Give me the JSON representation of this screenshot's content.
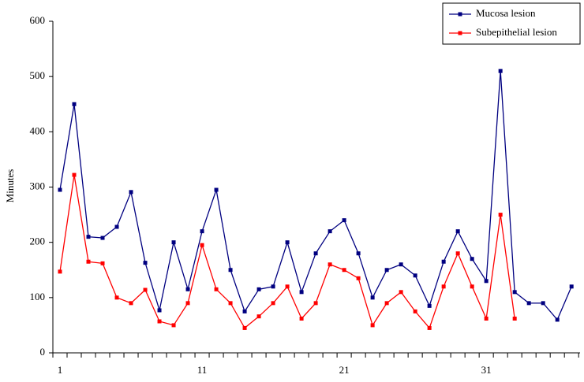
{
  "chart_data": {
    "type": "line",
    "ylabel": "Minutes",
    "x": [
      1,
      2,
      3,
      4,
      5,
      6,
      7,
      8,
      9,
      10,
      11,
      12,
      13,
      14,
      15,
      16,
      17,
      18,
      19,
      20,
      21,
      22,
      23,
      24,
      25,
      26,
      27,
      28,
      29,
      30,
      31,
      32,
      33,
      34,
      35,
      36,
      37
    ],
    "xlim": [
      0.5,
      37.6
    ],
    "xticks": [
      1,
      11,
      21,
      31
    ],
    "ylim": [
      0,
      600
    ],
    "yticks": [
      0,
      100,
      200,
      300,
      400,
      500,
      600
    ],
    "grid": false,
    "legend": "upper right",
    "series": [
      {
        "name": "Mucosa lesion",
        "color": "#000080",
        "values": [
          295,
          450,
          210,
          208,
          228,
          291,
          163,
          77,
          200,
          115,
          220,
          295,
          150,
          75,
          115,
          120,
          200,
          110,
          180,
          220,
          240,
          180,
          100,
          150,
          160,
          140,
          85,
          165,
          220,
          170,
          130,
          510,
          110,
          90,
          90,
          60,
          120
        ]
      },
      {
        "name": "Subepithelial lesion",
        "color": "#ff0000",
        "values": [
          147,
          322,
          165,
          162,
          100,
          90,
          114,
          57,
          50,
          90,
          195,
          115,
          90,
          45,
          66,
          90,
          120,
          62,
          90,
          160,
          150,
          135,
          50,
          90,
          110,
          75,
          45,
          120,
          180,
          120,
          62,
          250,
          62,
          null,
          null,
          null,
          null
        ]
      }
    ]
  }
}
